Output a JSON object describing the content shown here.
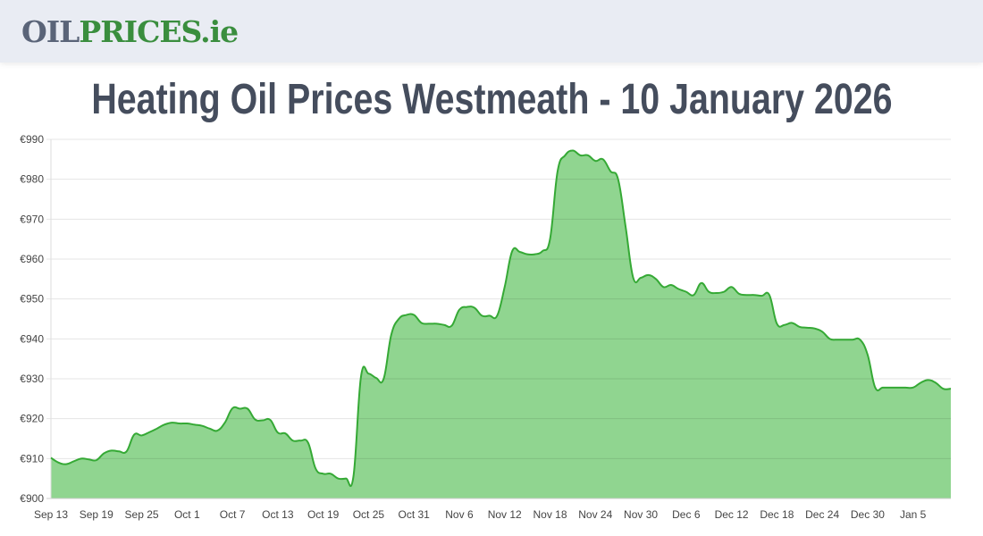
{
  "header": {
    "logo_part1": "OIL",
    "logo_part2": "PRICES.ie"
  },
  "page_title": "Heating Oil Prices Westmeath - 10 January 2026",
  "colors": {
    "fill": "#90d590",
    "line": "#35a935",
    "grid": "#e2e2e2",
    "title": "#454d5d"
  },
  "chart_data": {
    "type": "area",
    "title": "",
    "xlabel": "",
    "ylabel": "",
    "ylim": [
      900,
      990
    ],
    "y_ticks": [
      "€900",
      "€910",
      "€920",
      "€930",
      "€940",
      "€950",
      "€960",
      "€970",
      "€980",
      "€990"
    ],
    "x_tick_labels": [
      "Sep 13",
      "Sep 19",
      "Sep 25",
      "Oct 1",
      "Oct 7",
      "Oct 13",
      "Oct 19",
      "Oct 25",
      "Oct 31",
      "Nov 6",
      "Nov 12",
      "Nov 18",
      "Nov 24",
      "Nov 30",
      "Dec 6",
      "Dec 12",
      "Dec 18",
      "Dec 24",
      "Dec 30",
      "Jan 5"
    ],
    "x_start": "Sep 13",
    "x_end": "Jan 10",
    "grid": true,
    "legend": "none",
    "values": [
      910.2,
      909,
      908.6,
      909.3,
      910,
      909.8,
      909.6,
      911.3,
      912,
      911.8,
      911.8,
      916,
      915.8,
      916.6,
      917.5,
      918.5,
      919,
      918.8,
      918.8,
      918.5,
      918.2,
      917.5,
      917,
      919,
      922.6,
      922.5,
      922.5,
      919.8,
      919.6,
      919.7,
      916.5,
      916.3,
      914.5,
      914.5,
      914,
      907.5,
      906.2,
      906.2,
      905,
      905,
      905.5,
      930.5,
      931.3,
      930.2,
      930,
      941,
      945,
      946,
      946,
      944,
      943.8,
      943.8,
      943.5,
      943.3,
      947.3,
      948,
      947.8,
      945.8,
      945.8,
      945.8,
      953,
      962,
      961.8,
      961.2,
      961.2,
      962,
      965,
      982,
      986,
      987.2,
      986,
      986,
      984.6,
      985,
      982,
      980,
      968,
      955.3,
      955.3,
      956,
      955,
      953,
      953.5,
      952.5,
      951.8,
      951,
      954,
      951.8,
      951.5,
      951.8,
      953,
      951.3,
      951,
      951,
      950.8,
      951,
      943.8,
      943.5,
      944,
      943,
      942.8,
      942.6,
      941.8,
      940,
      939.8,
      939.8,
      939.8,
      939.8,
      936,
      927.8,
      927.8,
      927.8,
      927.8,
      927.8,
      927.8,
      929,
      929.7,
      929,
      927.5,
      927.5
    ]
  }
}
